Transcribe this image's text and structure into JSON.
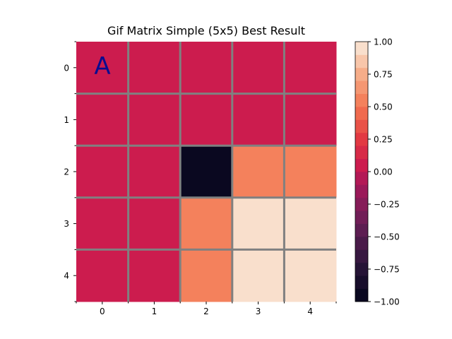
{
  "chart_data": {
    "type": "heatmap",
    "title": "Gif Matrix Simple (5x5) Best Result",
    "x_ticks": [
      "0",
      "1",
      "2",
      "3",
      "4"
    ],
    "y_ticks": [
      "0",
      "1",
      "2",
      "3",
      "4"
    ],
    "matrix": [
      [
        0,
        0,
        0,
        0,
        0
      ],
      [
        0,
        0,
        0,
        0,
        0
      ],
      [
        0,
        0,
        -1,
        0.5,
        0.5
      ],
      [
        0,
        0,
        0.5,
        0.9,
        0.9
      ],
      [
        0,
        0,
        0.5,
        0.9,
        0.9
      ]
    ],
    "annotation": {
      "text": "A",
      "row": 0,
      "col": 0,
      "color": "#0b0b8f"
    },
    "grid_color": "#808080",
    "colorbar": {
      "vmin": -1.0,
      "vmax": 1.0,
      "levels": 20,
      "tick_labels": [
        "1.00",
        "0.75",
        "0.50",
        "0.25",
        "0.00",
        "−0.25",
        "−0.50",
        "−0.75",
        "−1.00"
      ],
      "tick_values": [
        1.0,
        0.75,
        0.5,
        0.25,
        0.0,
        -0.25,
        -0.5,
        -0.75,
        -1.0
      ]
    }
  }
}
